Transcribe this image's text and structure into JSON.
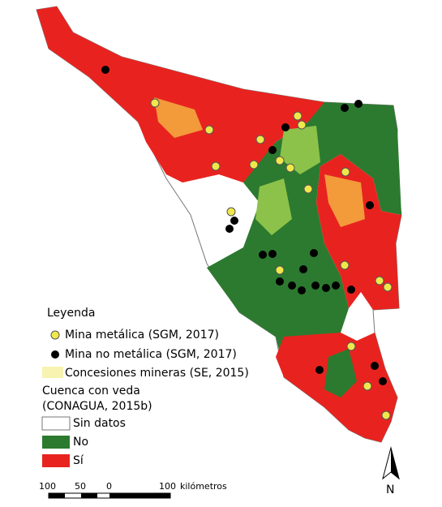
{
  "legend": {
    "title": "Leyenda",
    "points": [
      {
        "label": "Mina metálica (SGM, 2017)"
      },
      {
        "label": "Mina no metálica (SGM, 2017)"
      }
    ],
    "concessions": "Concesiones mineras (SE, 2015)",
    "basin_title": [
      "Cuenca con veda",
      "(CONAGUA, 2015b)"
    ],
    "basin_items": [
      {
        "label": "Sin datos"
      },
      {
        "label": "No"
      },
      {
        "label": "Sí"
      }
    ]
  },
  "scale_bar": {
    "labels": [
      "100",
      "50",
      "0",
      "100"
    ],
    "unit": "kilómetros"
  },
  "north": "N"
}
